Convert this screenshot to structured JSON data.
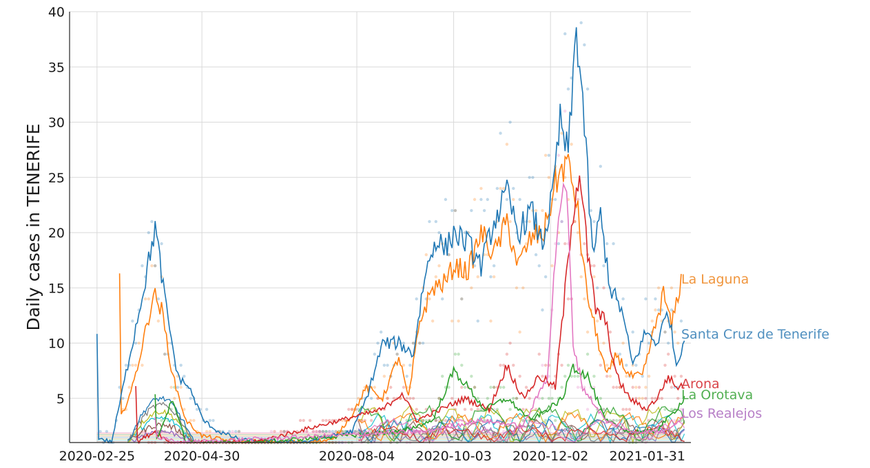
{
  "chart_data": {
    "type": "line",
    "title": "",
    "xlabel": "",
    "ylabel": "Daily cases in TENERIFE",
    "x_ticks": [
      "2020-02-25",
      "2020-04-30",
      "2020-08-04",
      "2020-10-03",
      "2020-12-02",
      "2021-01-31"
    ],
    "x_range": [
      "2020-02-08",
      "2021-02-27"
    ],
    "ylim": [
      1,
      40
    ],
    "y_ticks": [
      5,
      10,
      15,
      20,
      25,
      30,
      35,
      40
    ],
    "grid": true,
    "legend": "direct labels at right end of lines",
    "series": [
      {
        "name": "La Laguna",
        "color": "#ff7f0e",
        "points": [
          [
            "2020-03-10",
            3
          ],
          [
            "2020-03-18",
            6
          ],
          [
            "2020-03-26",
            11
          ],
          [
            "2020-03-31",
            14.5
          ],
          [
            "2020-04-05",
            13
          ],
          [
            "2020-04-12",
            7
          ],
          [
            "2020-04-20",
            3
          ],
          [
            "2020-04-30",
            1.6
          ],
          [
            "2020-05-15",
            1.2
          ],
          [
            "2020-06-20",
            1
          ],
          [
            "2020-07-20",
            1.2
          ],
          [
            "2020-08-01",
            3.5
          ],
          [
            "2020-08-10",
            6
          ],
          [
            "2020-08-20",
            5
          ],
          [
            "2020-08-30",
            8.8
          ],
          [
            "2020-09-05",
            5
          ],
          [
            "2020-09-12",
            12
          ],
          [
            "2020-09-20",
            15
          ],
          [
            "2020-09-28",
            15.5
          ],
          [
            "2020-10-03",
            17
          ],
          [
            "2020-10-12",
            16.5
          ],
          [
            "2020-10-20",
            20
          ],
          [
            "2020-10-28",
            18
          ],
          [
            "2020-11-05",
            21
          ],
          [
            "2020-11-12",
            17
          ],
          [
            "2020-11-20",
            19.5
          ],
          [
            "2020-11-28",
            20
          ],
          [
            "2020-12-05",
            24.5
          ],
          [
            "2020-12-12",
            26.5
          ],
          [
            "2020-12-18",
            23
          ],
          [
            "2020-12-24",
            15
          ],
          [
            "2020-12-30",
            11
          ],
          [
            "2021-01-06",
            7
          ],
          [
            "2021-01-12",
            9
          ],
          [
            "2021-01-20",
            7
          ],
          [
            "2021-01-28",
            7
          ],
          [
            "2021-02-04",
            11
          ],
          [
            "2021-02-10",
            14.5
          ],
          [
            "2021-02-15",
            11.5
          ],
          [
            "2021-02-21",
            15.8
          ]
        ]
      },
      {
        "name": "Santa Cruz de Tenerife",
        "color": "#1f77b4",
        "points": [
          [
            "2020-02-25",
            1.5
          ],
          [
            "2020-03-05",
            1
          ],
          [
            "2020-03-15",
            8
          ],
          [
            "2020-03-25",
            15
          ],
          [
            "2020-04-01",
            20.5
          ],
          [
            "2020-04-08",
            13
          ],
          [
            "2020-04-15",
            7
          ],
          [
            "2020-04-22",
            6
          ],
          [
            "2020-05-01",
            3
          ],
          [
            "2020-05-10",
            2
          ],
          [
            "2020-05-25",
            1.2
          ],
          [
            "2020-07-01",
            1
          ],
          [
            "2020-08-01",
            2
          ],
          [
            "2020-08-10",
            5
          ],
          [
            "2020-08-20",
            10
          ],
          [
            "2020-08-30",
            10
          ],
          [
            "2020-09-08",
            9
          ],
          [
            "2020-09-15",
            16
          ],
          [
            "2020-09-22",
            19.5
          ],
          [
            "2020-09-28",
            18.5
          ],
          [
            "2020-10-03",
            20
          ],
          [
            "2020-10-12",
            19
          ],
          [
            "2020-10-20",
            17
          ],
          [
            "2020-10-28",
            21
          ],
          [
            "2020-11-05",
            23.5
          ],
          [
            "2020-11-12",
            20
          ],
          [
            "2020-11-20",
            22
          ],
          [
            "2020-11-27",
            19
          ],
          [
            "2020-12-03",
            23
          ],
          [
            "2020-12-08",
            30
          ],
          [
            "2020-12-13",
            27
          ],
          [
            "2020-12-18",
            38.5
          ],
          [
            "2020-12-22",
            32
          ],
          [
            "2020-12-28",
            18
          ],
          [
            "2021-01-02",
            21.5
          ],
          [
            "2021-01-08",
            15
          ],
          [
            "2021-01-15",
            13
          ],
          [
            "2021-01-22",
            8
          ],
          [
            "2021-01-30",
            11
          ],
          [
            "2021-02-06",
            10
          ],
          [
            "2021-02-13",
            13
          ],
          [
            "2021-02-18",
            8
          ],
          [
            "2021-02-23",
            10.5
          ]
        ]
      },
      {
        "name": "Arona",
        "color": "#d62728",
        "points": [
          [
            "2020-03-20",
            1
          ],
          [
            "2020-04-01",
            2
          ],
          [
            "2020-04-10",
            1
          ],
          [
            "2020-06-01",
            1
          ],
          [
            "2020-08-20",
            4
          ],
          [
            "2020-09-01",
            5.5
          ],
          [
            "2020-09-10",
            3
          ],
          [
            "2020-09-25",
            4
          ],
          [
            "2020-10-10",
            5
          ],
          [
            "2020-10-25",
            4
          ],
          [
            "2020-11-05",
            8
          ],
          [
            "2020-11-15",
            5
          ],
          [
            "2020-11-25",
            7
          ],
          [
            "2020-12-05",
            6
          ],
          [
            "2020-12-10",
            13
          ],
          [
            "2020-12-15",
            21
          ],
          [
            "2020-12-20",
            25.8
          ],
          [
            "2020-12-25",
            18
          ],
          [
            "2020-12-30",
            13
          ],
          [
            "2021-01-05",
            12
          ],
          [
            "2021-01-12",
            7
          ],
          [
            "2021-01-20",
            5
          ],
          [
            "2021-01-30",
            4
          ],
          [
            "2021-02-06",
            5
          ],
          [
            "2021-02-13",
            7
          ],
          [
            "2021-02-18",
            6
          ],
          [
            "2021-02-23",
            6.2
          ]
        ]
      },
      {
        "name": "La Orotava",
        "color": "#2ca02c",
        "points": [
          [
            "2020-04-01",
            1
          ],
          [
            "2020-04-12",
            5
          ],
          [
            "2020-04-20",
            1
          ],
          [
            "2020-06-01",
            1
          ],
          [
            "2020-09-01",
            2
          ],
          [
            "2020-09-20",
            3
          ],
          [
            "2020-10-03",
            7.5
          ],
          [
            "2020-10-12",
            6
          ],
          [
            "2020-10-22",
            4
          ],
          [
            "2020-11-05",
            5
          ],
          [
            "2020-11-20",
            3
          ],
          [
            "2020-12-10",
            5
          ],
          [
            "2020-12-15",
            8
          ],
          [
            "2020-12-25",
            7
          ],
          [
            "2021-01-05",
            3
          ],
          [
            "2021-01-20",
            2
          ],
          [
            "2021-02-05",
            2
          ],
          [
            "2021-02-18",
            4
          ],
          [
            "2021-02-23",
            5.1
          ]
        ]
      },
      {
        "name": "Los Realejos",
        "color": "#e377c2",
        "points": [
          [
            "2020-04-01",
            1.5
          ],
          [
            "2020-04-15",
            1
          ],
          [
            "2020-09-15",
            2
          ],
          [
            "2020-10-20",
            3
          ],
          [
            "2020-11-15",
            2.5
          ],
          [
            "2020-11-30",
            7
          ],
          [
            "2020-12-07",
            22
          ],
          [
            "2020-12-12",
            24
          ],
          [
            "2020-12-16",
            10
          ],
          [
            "2020-12-22",
            6
          ],
          [
            "2021-01-05",
            3
          ],
          [
            "2021-01-20",
            2
          ],
          [
            "2021-02-10",
            2
          ],
          [
            "2021-02-23",
            3.4
          ]
        ]
      }
    ]
  },
  "labels": {
    "la_laguna": "La Laguna",
    "santa_cruz": "Santa Cruz de Tenerife",
    "arona": "Arona",
    "la_orotava": "La Orotava",
    "los_realejos": "Los Realejos"
  },
  "label_colors": {
    "la_laguna": "#f0963e",
    "santa_cruz": "#4f8fbf",
    "arona": "#d9454a",
    "la_orotava": "#53b053",
    "los_realejos": "#b77fc7"
  },
  "background_series_colors": [
    "#9467bd",
    "#8c564b",
    "#17becf",
    "#bcbd22",
    "#7f7f7f",
    "#1f77b4",
    "#ff7f0e",
    "#2ca02c",
    "#d62728",
    "#e377c2"
  ]
}
